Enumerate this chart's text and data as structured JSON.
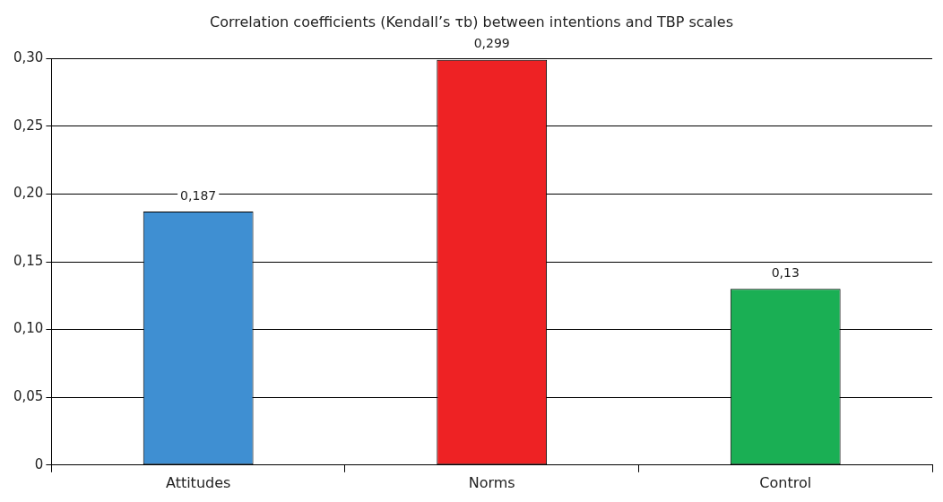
{
  "chart_data": {
    "type": "bar",
    "title": "Correlation coefficients (Kendall’s τb) between intentions and TBP scales",
    "categories": [
      "Attitudes",
      "Norms",
      "Control"
    ],
    "values": [
      0.187,
      0.299,
      0.13
    ],
    "colors": [
      "#3f8fd2",
      "#ee2224",
      "#1aaf54"
    ],
    "value_labels": [
      "0,187",
      "0,299",
      "0,13"
    ],
    "ylim": [
      0,
      0.3
    ],
    "yticks": [
      0,
      {
        "value": 0.05,
        "label": "0,05"
      },
      {
        "value": 0.1,
        "label": "0,10"
      },
      {
        "value": 0.15,
        "label": "0,15"
      },
      {
        "value": 0.2,
        "label": "0,20"
      },
      {
        "value": 0.25,
        "label": "0,25"
      },
      {
        "value": 0.3,
        "label": "0,30"
      }
    ],
    "grid": "y",
    "legend": false
  }
}
